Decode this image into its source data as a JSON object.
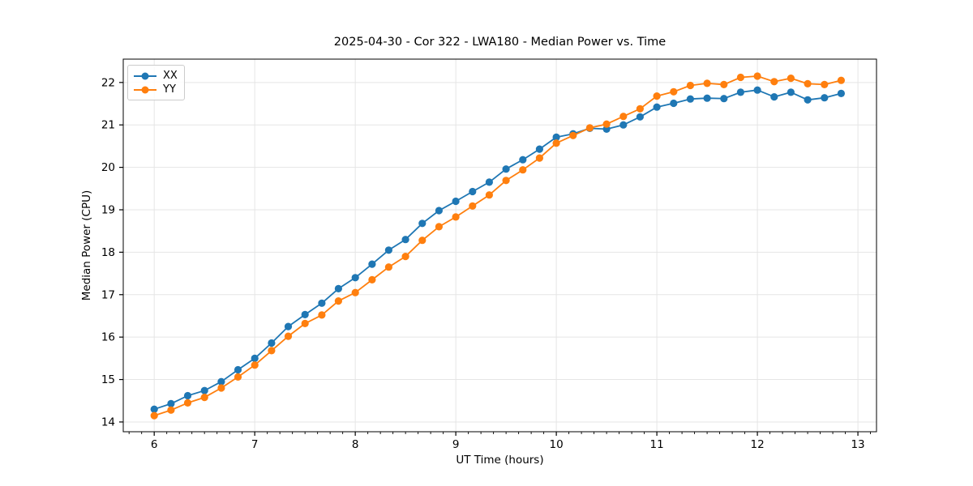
{
  "chart_data": {
    "type": "line",
    "title": "2025-04-30 - Cor 322 - LWA180 - Median Power vs. Time",
    "xlabel": "UT Time (hours)",
    "ylabel": "Median Power (CPU)",
    "x": [
      6.0,
      6.167,
      6.333,
      6.5,
      6.667,
      6.833,
      7.0,
      7.167,
      7.333,
      7.5,
      7.667,
      7.833,
      8.0,
      8.167,
      8.333,
      8.5,
      8.667,
      8.833,
      9.0,
      9.167,
      9.333,
      9.5,
      9.667,
      9.833,
      10.0,
      10.167,
      10.333,
      10.5,
      10.667,
      10.833,
      11.0,
      11.167,
      11.333,
      11.5,
      11.667,
      11.833,
      12.0,
      12.167,
      12.333,
      12.5,
      12.667,
      12.833
    ],
    "series": [
      {
        "name": "XX",
        "color": "#1f77b4",
        "values": [
          14.3,
          14.43,
          14.62,
          14.74,
          14.95,
          15.23,
          15.5,
          15.86,
          16.25,
          16.53,
          16.8,
          17.14,
          17.4,
          17.72,
          18.05,
          18.3,
          18.68,
          18.98,
          19.2,
          19.43,
          19.65,
          19.96,
          20.18,
          20.43,
          20.71,
          20.79,
          20.92,
          20.9,
          21.0,
          21.19,
          21.42,
          21.51,
          21.61,
          21.63,
          21.62,
          21.77,
          21.82,
          21.66,
          21.77,
          21.59,
          21.64,
          21.74
        ]
      },
      {
        "name": "YY",
        "color": "#ff7f0e",
        "values": [
          14.15,
          14.28,
          14.45,
          14.58,
          14.8,
          15.06,
          15.34,
          15.68,
          16.02,
          16.32,
          16.52,
          16.85,
          17.05,
          17.35,
          17.65,
          17.9,
          18.28,
          18.6,
          18.83,
          19.09,
          19.35,
          19.69,
          19.94,
          20.22,
          20.57,
          20.75,
          20.93,
          21.02,
          21.2,
          21.38,
          21.68,
          21.78,
          21.93,
          21.98,
          21.95,
          22.12,
          22.15,
          22.02,
          22.1,
          21.97,
          21.95,
          22.05
        ]
      }
    ],
    "xticks": [
      6,
      7,
      8,
      9,
      10,
      11,
      12,
      13
    ],
    "yticks": [
      14,
      15,
      16,
      17,
      18,
      19,
      20,
      21,
      22
    ],
    "xlim": [
      5.692,
      13.185
    ],
    "ylim": [
      13.77,
      22.55
    ],
    "x_minor_step": 0.125,
    "grid": true,
    "grid_color": "#e5e5e5",
    "legend_position": "upper left",
    "marker": "o",
    "background": "#ffffff"
  }
}
